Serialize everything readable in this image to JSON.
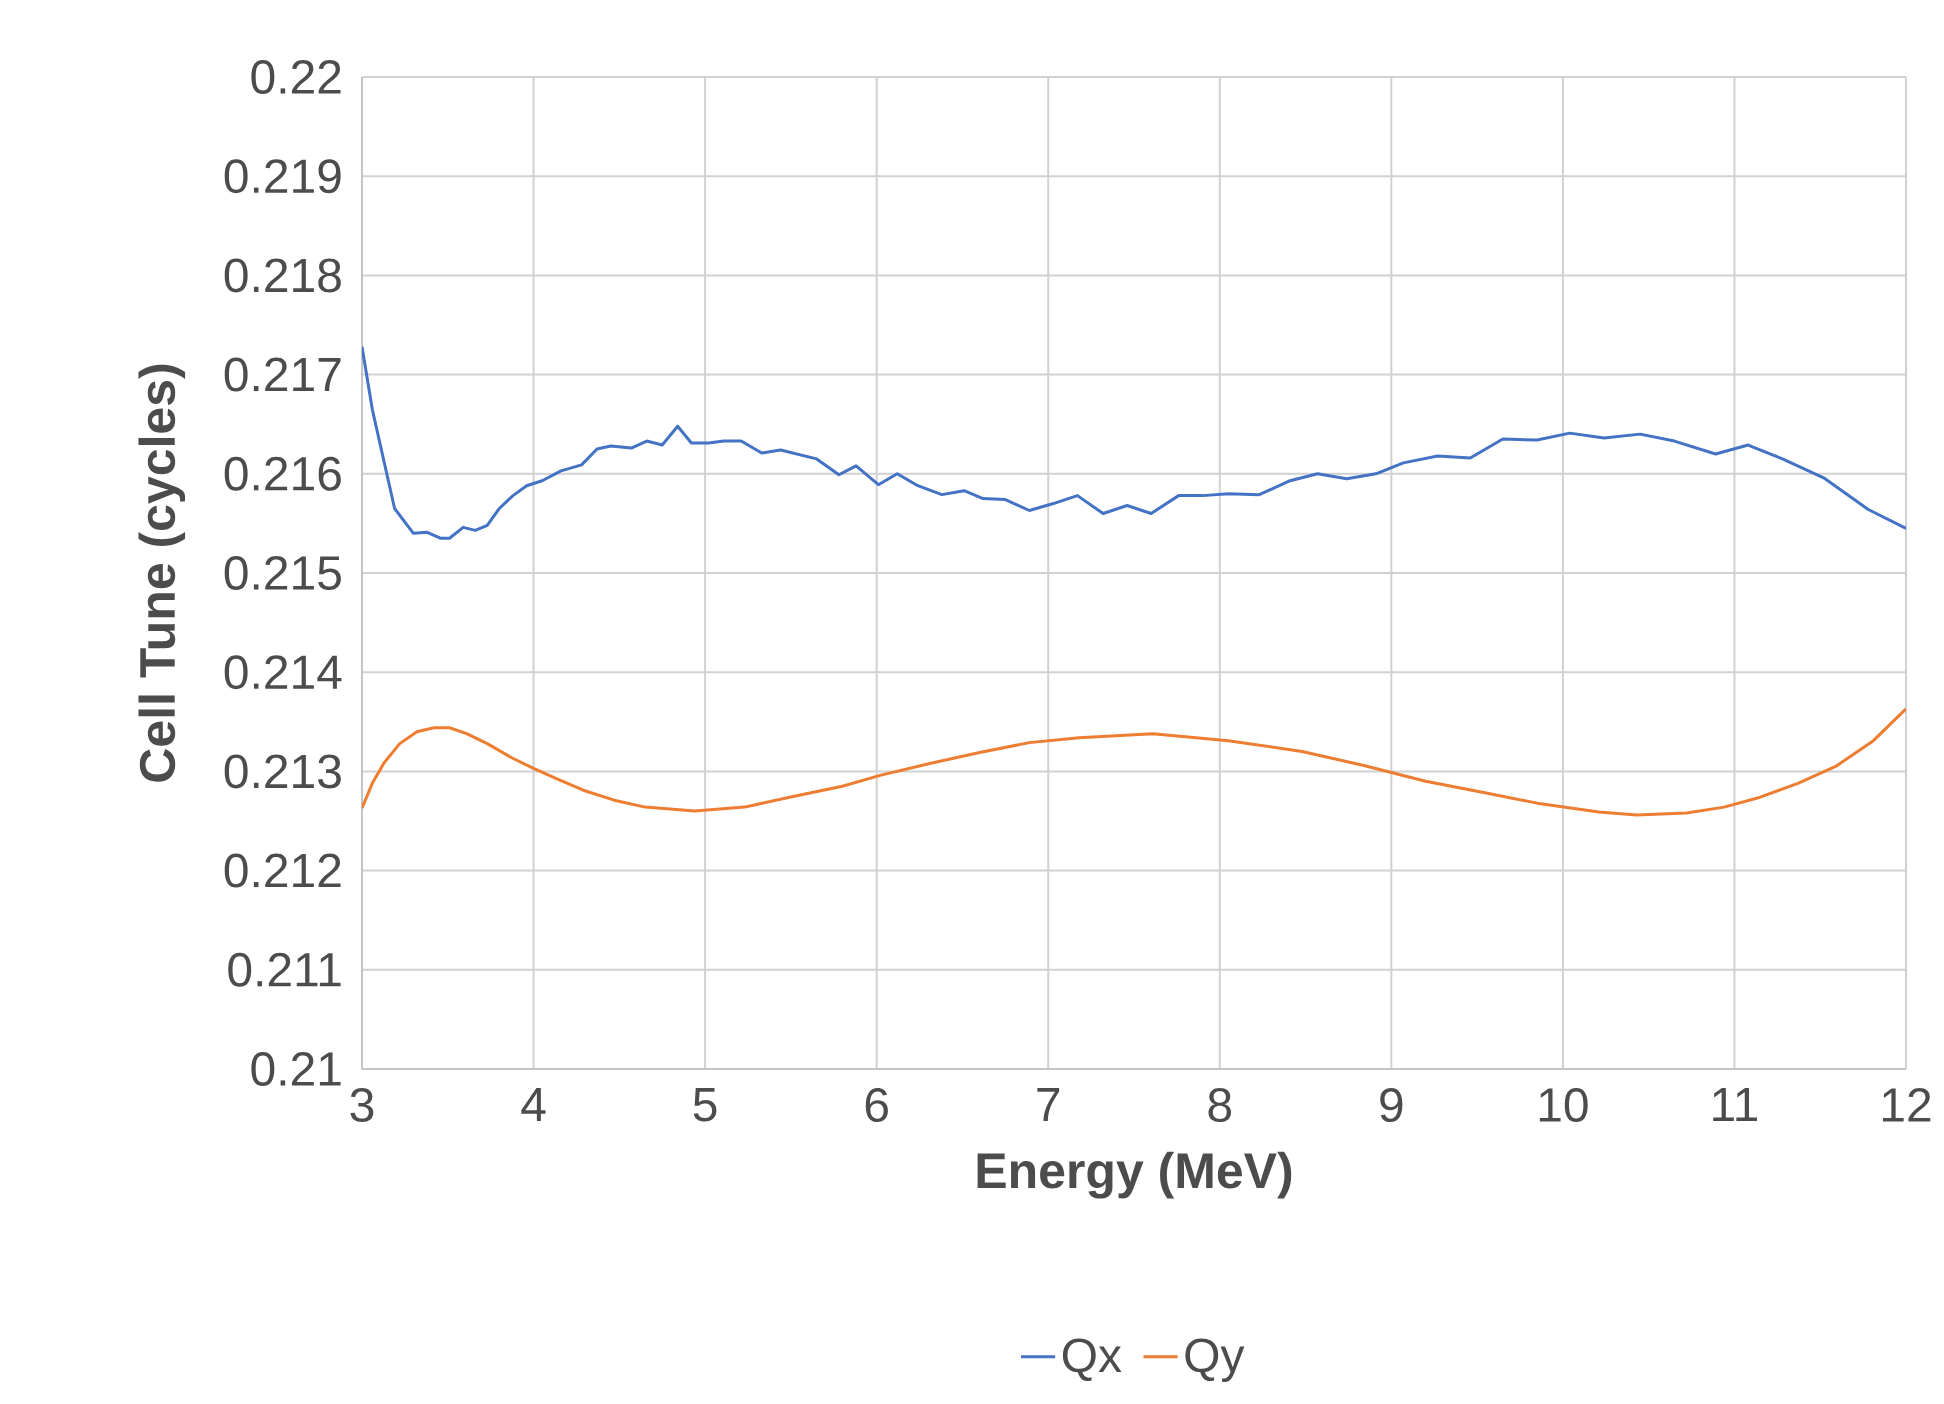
{
  "chart_data": {
    "type": "line",
    "xlabel": "Energy (MeV)",
    "ylabel": "Cell Tune (cycles)",
    "xlim": [
      3,
      12
    ],
    "xticks": [
      3,
      4,
      5,
      6,
      7,
      8,
      9,
      10,
      11,
      12
    ],
    "ylim": [
      0.21,
      0.22
    ],
    "yticks": [
      0.21,
      0.211,
      0.212,
      0.213,
      0.214,
      0.215,
      0.216,
      0.217,
      0.218,
      0.219,
      0.22
    ],
    "grid": true,
    "legend": "bottom",
    "marker": "none",
    "line_style": "solid",
    "series": [
      {
        "name": "Qx",
        "color": "#4472c4",
        "x": [
          3.0,
          3.06,
          3.19,
          3.3,
          3.38,
          3.46,
          3.51,
          3.59,
          3.66,
          3.73,
          3.8,
          3.88,
          3.96,
          4.05,
          4.16,
          4.28,
          4.37,
          4.45,
          4.57,
          4.66,
          4.75,
          4.84,
          4.92,
          5.02,
          5.11,
          5.21,
          5.33,
          5.44,
          5.65,
          5.78,
          5.88,
          6.01,
          6.12,
          6.24,
          6.38,
          6.51,
          6.62,
          6.75,
          6.89,
          7.03,
          7.17,
          7.32,
          7.46,
          7.6,
          7.76,
          7.9,
          8.05,
          8.23,
          8.41,
          8.57,
          8.74,
          8.91,
          9.07,
          9.27,
          9.46,
          9.65,
          9.85,
          10.04,
          10.24,
          10.45,
          10.65,
          10.89,
          11.08,
          11.28,
          11.52,
          11.78,
          12.0
        ],
        "values": [
          0.21728,
          0.21665,
          0.21565,
          0.2154,
          0.21541,
          0.21535,
          0.21535,
          0.21546,
          0.21543,
          0.21548,
          0.21565,
          0.21578,
          0.21588,
          0.21593,
          0.21603,
          0.21609,
          0.21625,
          0.21628,
          0.21626,
          0.21633,
          0.21629,
          0.21648,
          0.21631,
          0.21631,
          0.21633,
          0.21633,
          0.21621,
          0.21624,
          0.21615,
          0.21599,
          0.21608,
          0.21589,
          0.216,
          0.21588,
          0.21579,
          0.21583,
          0.21575,
          0.21574,
          0.21563,
          0.2157,
          0.21578,
          0.2156,
          0.21568,
          0.2156,
          0.21578,
          0.21578,
          0.2158,
          0.21579,
          0.21593,
          0.216,
          0.21595,
          0.216,
          0.21611,
          0.21618,
          0.21616,
          0.21635,
          0.21634,
          0.21641,
          0.21636,
          0.2164,
          0.21633,
          0.2162,
          0.21629,
          0.21615,
          0.21596,
          0.21564,
          0.21545
        ]
      },
      {
        "name": "Qy",
        "color": "#ed7d31",
        "x": [
          3.0,
          3.06,
          3.13,
          3.22,
          3.32,
          3.42,
          3.51,
          3.61,
          3.73,
          3.87,
          4.0,
          4.13,
          4.29,
          4.47,
          4.65,
          4.94,
          5.23,
          5.52,
          5.8,
          6.02,
          6.31,
          6.6,
          6.89,
          7.18,
          7.61,
          8.05,
          8.48,
          8.84,
          9.2,
          9.56,
          9.85,
          10.21,
          10.43,
          10.72,
          10.94,
          11.15,
          11.37,
          11.59,
          11.81,
          12.0
        ],
        "values": [
          0.21263,
          0.21288,
          0.21309,
          0.21328,
          0.2134,
          0.21344,
          0.21344,
          0.21338,
          0.21328,
          0.21314,
          0.21303,
          0.21293,
          0.21281,
          0.21271,
          0.21264,
          0.2126,
          0.21264,
          0.21275,
          0.21285,
          0.21296,
          0.21308,
          0.21319,
          0.21329,
          0.21334,
          0.21338,
          0.21331,
          0.2132,
          0.21306,
          0.2129,
          0.21278,
          0.21268,
          0.21259,
          0.21256,
          0.21258,
          0.21264,
          0.21274,
          0.21288,
          0.21305,
          0.21331,
          0.21363
        ]
      }
    ]
  }
}
